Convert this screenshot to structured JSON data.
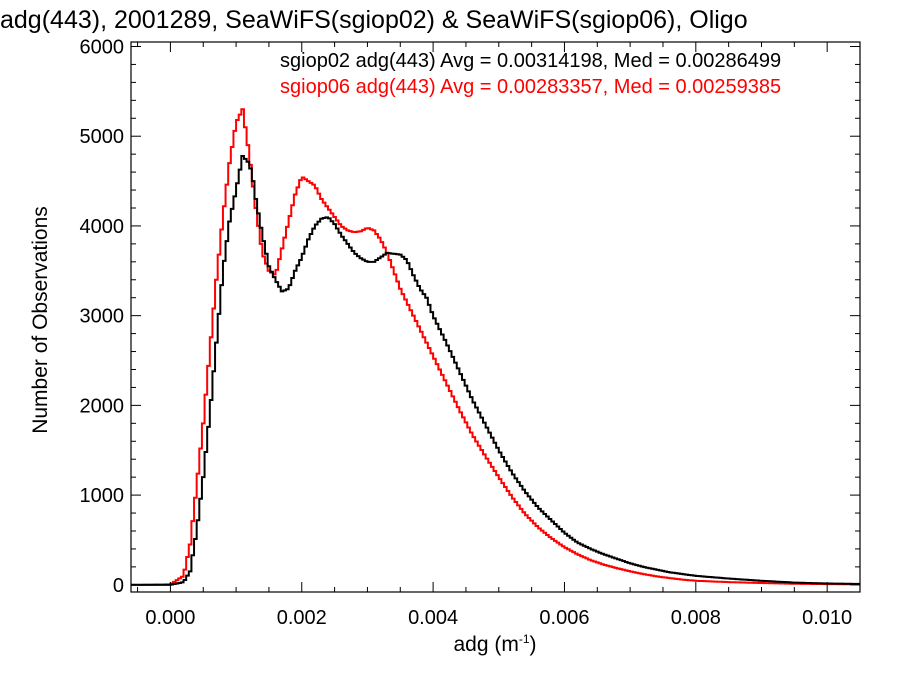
{
  "chart_data": {
    "type": "line",
    "title": "adg(443), 2001289, SeaWiFS(sgiop02) & SeaWiFS(sgiop06), Oligo",
    "xlabel": "adg (m",
    "xlabel_sup": "-1",
    "xlabel_suffix": ")",
    "ylabel": "Number of Observations",
    "xlim": [
      -0.0006,
      0.0105
    ],
    "ylim": [
      -80,
      6050
    ],
    "x_ticks": [
      "0.000",
      "0.002",
      "0.004",
      "0.006",
      "0.008",
      "0.010"
    ],
    "y_ticks": [
      "0",
      "1000",
      "2000",
      "3000",
      "4000",
      "5000",
      "6000"
    ],
    "legend": [
      "sgiop02 adg(443) Avg = 0.00314198, Med = 0.00286499",
      "sgiop06 adg(443) Avg = 0.00283357, Med = 0.00259385"
    ],
    "legend_position": "top-right",
    "series": [
      {
        "name": "sgiop02 adg(443)",
        "color": "#000000",
        "x": [
          -0.0006,
          0.0,
          0.0002,
          0.0003,
          0.0004,
          0.0005,
          0.0006,
          0.0007,
          0.0008,
          0.0009,
          0.001,
          0.0011,
          0.0012,
          0.00125,
          0.0013,
          0.0014,
          0.0015,
          0.0016,
          0.0017,
          0.0018,
          0.0019,
          0.002,
          0.0021,
          0.0022,
          0.0023,
          0.0024,
          0.0025,
          0.0026,
          0.0027,
          0.0028,
          0.0029,
          0.003,
          0.0031,
          0.0032,
          0.0033,
          0.0034,
          0.0035,
          0.0036,
          0.0037,
          0.0038,
          0.0039,
          0.004,
          0.0042,
          0.0044,
          0.0046,
          0.0048,
          0.005,
          0.0052,
          0.0054,
          0.0056,
          0.0058,
          0.006,
          0.0062,
          0.0064,
          0.0066,
          0.0068,
          0.007,
          0.0072,
          0.0074,
          0.0076,
          0.0078,
          0.008,
          0.0085,
          0.009,
          0.0095,
          0.01,
          0.0105
        ],
        "y": [
          0,
          0,
          30,
          150,
          600,
          1200,
          1900,
          2700,
          3500,
          4050,
          4400,
          4780,
          4700,
          4550,
          4300,
          3900,
          3550,
          3400,
          3270,
          3300,
          3500,
          3650,
          3850,
          4000,
          4080,
          4100,
          4020,
          3900,
          3800,
          3700,
          3640,
          3600,
          3600,
          3650,
          3700,
          3690,
          3680,
          3620,
          3450,
          3300,
          3200,
          3000,
          2700,
          2380,
          2060,
          1780,
          1500,
          1250,
          1040,
          860,
          720,
          580,
          470,
          400,
          340,
          290,
          240,
          200,
          170,
          140,
          120,
          100,
          70,
          45,
          25,
          15,
          10
        ]
      },
      {
        "name": "sgiop06 adg(443)",
        "color": "#ff0000",
        "x": [
          -0.0006,
          0.0,
          0.0002,
          0.0003,
          0.0004,
          0.0005,
          0.0006,
          0.0007,
          0.0008,
          0.0009,
          0.001,
          0.0011,
          0.0012,
          0.0013,
          0.0014,
          0.0015,
          0.0016,
          0.0017,
          0.0018,
          0.0019,
          0.002,
          0.0021,
          0.0022,
          0.0023,
          0.0024,
          0.0025,
          0.0026,
          0.0027,
          0.0028,
          0.0029,
          0.003,
          0.0031,
          0.0032,
          0.0033,
          0.0034,
          0.0035,
          0.0036,
          0.0037,
          0.0038,
          0.0039,
          0.004,
          0.0042,
          0.0044,
          0.0046,
          0.0048,
          0.005,
          0.0052,
          0.0054,
          0.0056,
          0.0058,
          0.006,
          0.0062,
          0.0064,
          0.0066,
          0.0068,
          0.007,
          0.0072,
          0.0074,
          0.0076,
          0.0078,
          0.008,
          0.0085,
          0.009,
          0.0095,
          0.01,
          0.0105
        ],
        "y": [
          0,
          5,
          100,
          450,
          1100,
          1800,
          2600,
          3400,
          4100,
          4700,
          5150,
          5300,
          4800,
          4200,
          3700,
          3500,
          3450,
          3750,
          4050,
          4350,
          4550,
          4500,
          4450,
          4300,
          4200,
          4100,
          4000,
          3950,
          3930,
          3940,
          3980,
          3950,
          3850,
          3700,
          3500,
          3300,
          3150,
          3000,
          2850,
          2700,
          2550,
          2250,
          1950,
          1670,
          1430,
          1200,
          980,
          790,
          640,
          520,
          420,
          340,
          275,
          225,
          185,
          150,
          120,
          95,
          75,
          58,
          45,
          30,
          20,
          12,
          8,
          5
        ]
      }
    ]
  }
}
